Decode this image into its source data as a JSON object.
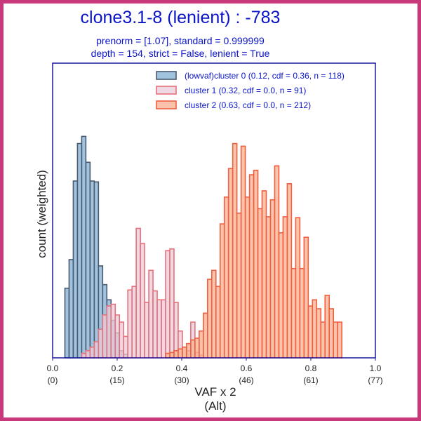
{
  "chart_data": {
    "type": "bar",
    "title": "clone3.1-8 (lenient) : -783",
    "subtitle_lines": [
      "prenorm = [1.07], standard = 0.999999",
      "depth = 154, strict = False, lenient = True"
    ],
    "xlabel_lines": [
      "VAF x 2",
      "(Alt)"
    ],
    "ylabel": "count (weighted)",
    "xlim": [
      0.0,
      1.0
    ],
    "ylim": [
      0,
      330
    ],
    "x_ticks": [
      {
        "value": 0.0,
        "label": "0.0",
        "sublabel": "(0)"
      },
      {
        "value": 0.2,
        "label": "0.2",
        "sublabel": "(15)"
      },
      {
        "value": 0.4,
        "label": "0.4",
        "sublabel": "(30)"
      },
      {
        "value": 0.6,
        "label": "0.6",
        "sublabel": "(46)"
      },
      {
        "value": 0.8,
        "label": "0.8",
        "sublabel": "(61)"
      },
      {
        "value": 1.0,
        "label": "1.0",
        "sublabel": "(77)"
      }
    ],
    "legend_position": "top-right",
    "bin_width": 0.013,
    "series": [
      {
        "name": "(lowvaf)cluster 0 (0.12, cdf = 0.36, n = 118)",
        "fill": "#90b8d8",
        "stroke": "#4a5a70",
        "bins": [
          [
            0.038,
            78
          ],
          [
            0.051,
            110
          ],
          [
            0.064,
            198
          ],
          [
            0.077,
            240
          ],
          [
            0.09,
            248
          ],
          [
            0.103,
            219
          ],
          [
            0.116,
            198
          ],
          [
            0.129,
            197
          ],
          [
            0.142,
            103
          ],
          [
            0.155,
            82
          ],
          [
            0.168,
            65
          ],
          [
            0.181,
            42
          ],
          [
            0.194,
            28
          ],
          [
            0.207,
            8
          ],
          [
            0.22,
            4
          ]
        ]
      },
      {
        "name": "cluster 1 (0.32, cdf = 0.0, n = 91)",
        "fill": "#e8ccda",
        "stroke": "#e8707a",
        "bins": [
          [
            0.09,
            5
          ],
          [
            0.103,
            8
          ],
          [
            0.116,
            12
          ],
          [
            0.129,
            18
          ],
          [
            0.142,
            32
          ],
          [
            0.155,
            48
          ],
          [
            0.168,
            58
          ],
          [
            0.181,
            60
          ],
          [
            0.194,
            48
          ],
          [
            0.207,
            40
          ],
          [
            0.22,
            24
          ],
          [
            0.233,
            76
          ],
          [
            0.246,
            80
          ],
          [
            0.259,
            145
          ],
          [
            0.272,
            128
          ],
          [
            0.285,
            62
          ],
          [
            0.298,
            98
          ],
          [
            0.311,
            75
          ],
          [
            0.324,
            65
          ],
          [
            0.337,
            65
          ],
          [
            0.35,
            120
          ],
          [
            0.363,
            122
          ],
          [
            0.376,
            62
          ],
          [
            0.389,
            30
          ],
          [
            0.402,
            12
          ],
          [
            0.415,
            8
          ],
          [
            0.428,
            40
          ],
          [
            0.441,
            6
          ],
          [
            0.454,
            3
          ]
        ]
      },
      {
        "name": "cluster 2 (0.63, cdf = 0.0, n = 212)",
        "fill": "#f8b090",
        "stroke": "#f06040",
        "bins": [
          [
            0.35,
            5
          ],
          [
            0.363,
            6
          ],
          [
            0.376,
            8
          ],
          [
            0.389,
            10
          ],
          [
            0.402,
            12
          ],
          [
            0.415,
            16
          ],
          [
            0.428,
            20
          ],
          [
            0.441,
            22
          ],
          [
            0.454,
            30
          ],
          [
            0.467,
            50
          ],
          [
            0.48,
            88
          ],
          [
            0.493,
            98
          ],
          [
            0.506,
            80
          ],
          [
            0.519,
            150
          ],
          [
            0.532,
            180
          ],
          [
            0.545,
            212
          ],
          [
            0.558,
            240
          ],
          [
            0.571,
            162
          ],
          [
            0.584,
            237
          ],
          [
            0.597,
            180
          ],
          [
            0.61,
            205
          ],
          [
            0.623,
            210
          ],
          [
            0.636,
            167
          ],
          [
            0.649,
            187
          ],
          [
            0.662,
            158
          ],
          [
            0.675,
            177
          ],
          [
            0.688,
            215
          ],
          [
            0.701,
            140
          ],
          [
            0.714,
            158
          ],
          [
            0.727,
            195
          ],
          [
            0.74,
            100
          ],
          [
            0.753,
            157
          ],
          [
            0.766,
            100
          ],
          [
            0.779,
            135
          ],
          [
            0.792,
            58
          ],
          [
            0.805,
            65
          ],
          [
            0.818,
            55
          ],
          [
            0.831,
            40
          ],
          [
            0.844,
            70
          ],
          [
            0.857,
            55
          ],
          [
            0.87,
            40
          ],
          [
            0.883,
            40
          ]
        ]
      }
    ]
  }
}
